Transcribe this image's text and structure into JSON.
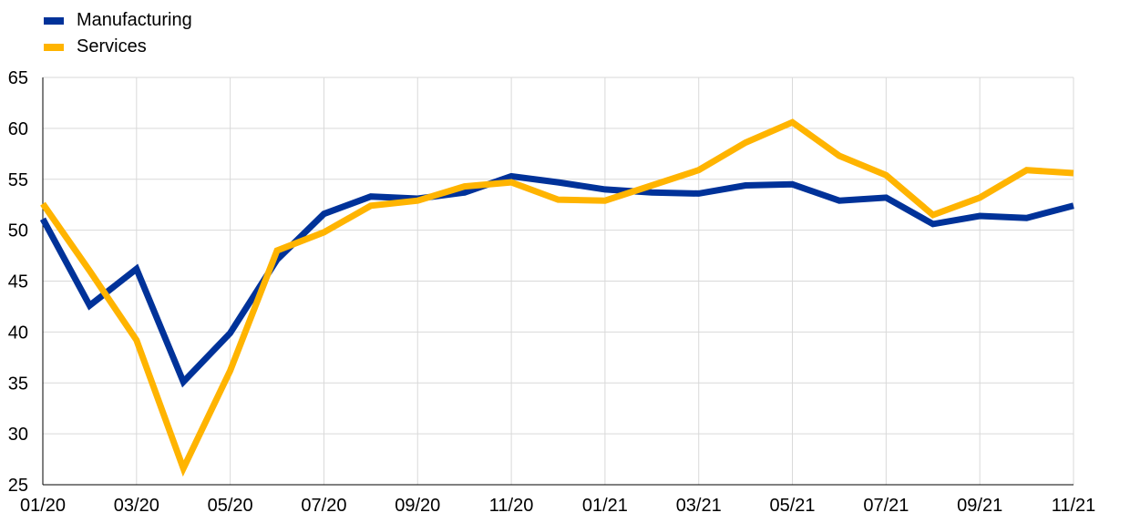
{
  "chart_data": {
    "type": "line",
    "title": "",
    "xlabel": "",
    "ylabel": "",
    "x": [
      "01/20",
      "02/20",
      "03/20",
      "04/20",
      "05/20",
      "06/20",
      "07/20",
      "08/20",
      "09/20",
      "10/20",
      "11/20",
      "12/20",
      "01/21",
      "02/21",
      "03/21",
      "04/21",
      "05/21",
      "06/21",
      "07/21",
      "08/21",
      "09/21",
      "10/21",
      "11/21"
    ],
    "x_tick_labels": [
      "01/20",
      "03/20",
      "05/20",
      "07/20",
      "09/20",
      "11/20",
      "01/21",
      "03/21",
      "05/21",
      "07/21",
      "09/21",
      "11/21"
    ],
    "ylim": [
      25,
      65
    ],
    "y_ticks": [
      25,
      30,
      35,
      40,
      45,
      50,
      55,
      60,
      65
    ],
    "grid": true,
    "legend_position": "top-left",
    "series": [
      {
        "name": "Manufacturing",
        "color": "#003299",
        "values": [
          51.1,
          42.6,
          46.2,
          35.1,
          39.9,
          47.1,
          51.6,
          53.3,
          53.1,
          53.7,
          55.3,
          54.7,
          54.0,
          53.7,
          53.6,
          54.4,
          54.5,
          52.9,
          53.2,
          50.6,
          51.4,
          51.2,
          52.4
        ]
      },
      {
        "name": "Services",
        "color": "#FFB400",
        "values": [
          52.6,
          46.0,
          39.2,
          26.6,
          36.2,
          48.0,
          49.8,
          52.4,
          52.9,
          54.3,
          54.7,
          53.0,
          52.9,
          54.4,
          55.9,
          58.6,
          60.6,
          57.3,
          55.4,
          51.5,
          53.2,
          55.9,
          55.6
        ]
      }
    ]
  }
}
